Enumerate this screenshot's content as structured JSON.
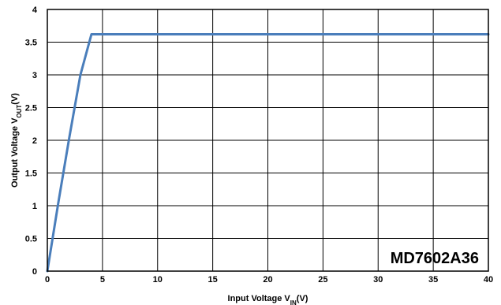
{
  "chart_data": {
    "type": "line",
    "title": "",
    "xlabel": {
      "main": "Input Voltage V",
      "sub": "IN",
      "suffix": "(V)"
    },
    "ylabel": {
      "main": "Output Voltage V",
      "sub": "OUT",
      "suffix": "(V)"
    },
    "xlim": [
      0,
      40
    ],
    "ylim": [
      0,
      4
    ],
    "x_ticks": [
      0,
      5,
      10,
      15,
      20,
      25,
      30,
      35,
      40
    ],
    "y_ticks": [
      0,
      0.5,
      1,
      1.5,
      2,
      2.5,
      3,
      3.5,
      4
    ],
    "grid": true,
    "annotation": "MD7602A36",
    "series": [
      {
        "color": "#4a7ebb",
        "x": [
          0,
          1,
          2,
          3,
          4,
          10,
          20,
          30,
          40
        ],
        "y": [
          0,
          1.05,
          2.05,
          3.0,
          3.62,
          3.62,
          3.62,
          3.62,
          3.62
        ]
      }
    ]
  }
}
